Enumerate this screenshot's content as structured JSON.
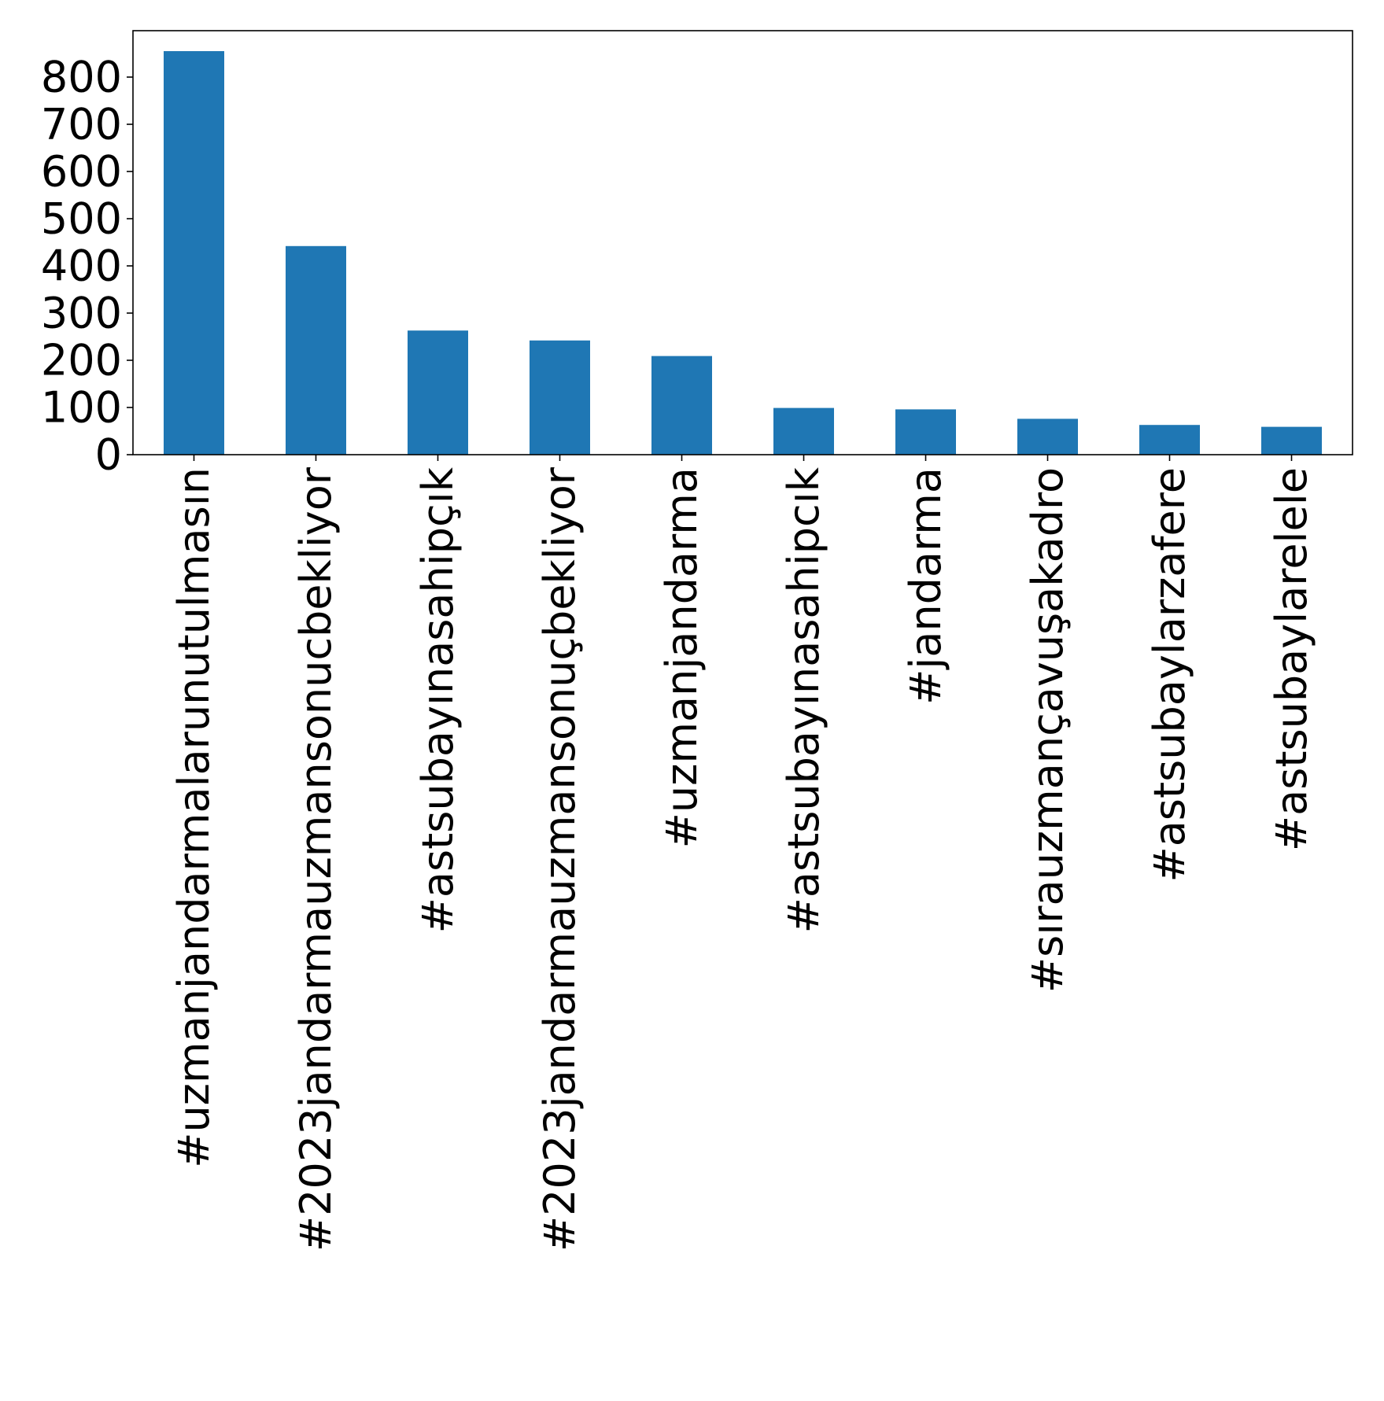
{
  "chart_data": {
    "type": "bar",
    "title": "",
    "xlabel": "",
    "ylabel": "",
    "categories": [
      "#uzmanjandarmalarunutulmasın",
      "#2023jandarmauzmansonucbekliyor",
      "#astsubayınasahipçık",
      "#2023jandarmauzmansonuçbekliyor",
      "#uzmanjandarma",
      "#astsubayınasahipcık",
      "#jandarma",
      "#sırauzmançavuşakadro",
      "#astsubaylarzafere",
      "#astsubaylarelele"
    ],
    "values": [
      855,
      442,
      263,
      242,
      209,
      99,
      96,
      76,
      63,
      59
    ],
    "ylim": [
      0,
      900
    ],
    "yticks": [
      0,
      100,
      200,
      300,
      400,
      500,
      600,
      700,
      800
    ],
    "bar_color": "#1f77b4",
    "grid": false,
    "legend": "none"
  }
}
